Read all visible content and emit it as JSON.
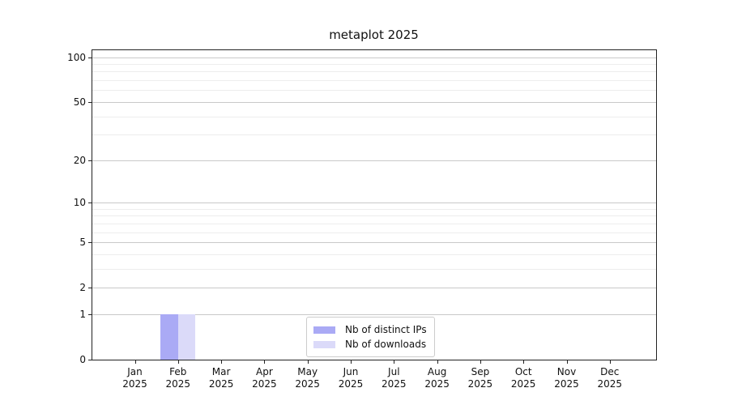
{
  "chart_data": {
    "type": "bar",
    "title": "metaplot 2025",
    "categories": [
      "Jan 2025",
      "Feb 2025",
      "Mar 2025",
      "Apr 2025",
      "May 2025",
      "Jun 2025",
      "Jul 2025",
      "Aug 2025",
      "Sep 2025",
      "Oct 2025",
      "Nov 2025",
      "Dec 2025"
    ],
    "series": [
      {
        "name": "Nb of distinct IPs",
        "color": "#aaaaf5",
        "values": [
          0,
          1,
          0,
          0,
          0,
          0,
          0,
          0,
          0,
          0,
          0,
          0
        ]
      },
      {
        "name": "Nb of downloads",
        "color": "#dbdaf9",
        "values": [
          0,
          1,
          0,
          0,
          0,
          0,
          0,
          0,
          0,
          0,
          0,
          0
        ]
      }
    ],
    "xlabel": "",
    "ylabel": "",
    "yscale": "log1p",
    "ylim": [
      0,
      113
    ],
    "yticks_major": [
      0,
      1,
      2,
      5,
      10,
      20,
      50,
      100
    ],
    "yticks_minor": [
      3,
      4,
      6,
      7,
      8,
      9,
      30,
      40,
      60,
      70,
      80,
      90
    ],
    "grid": true,
    "legend_position": "lower center",
    "colors": {
      "axis": "#222222",
      "grid_major": "#c9c9c9",
      "grid_minor": "#ededed",
      "text": "#111111",
      "background": "#ffffff"
    }
  }
}
